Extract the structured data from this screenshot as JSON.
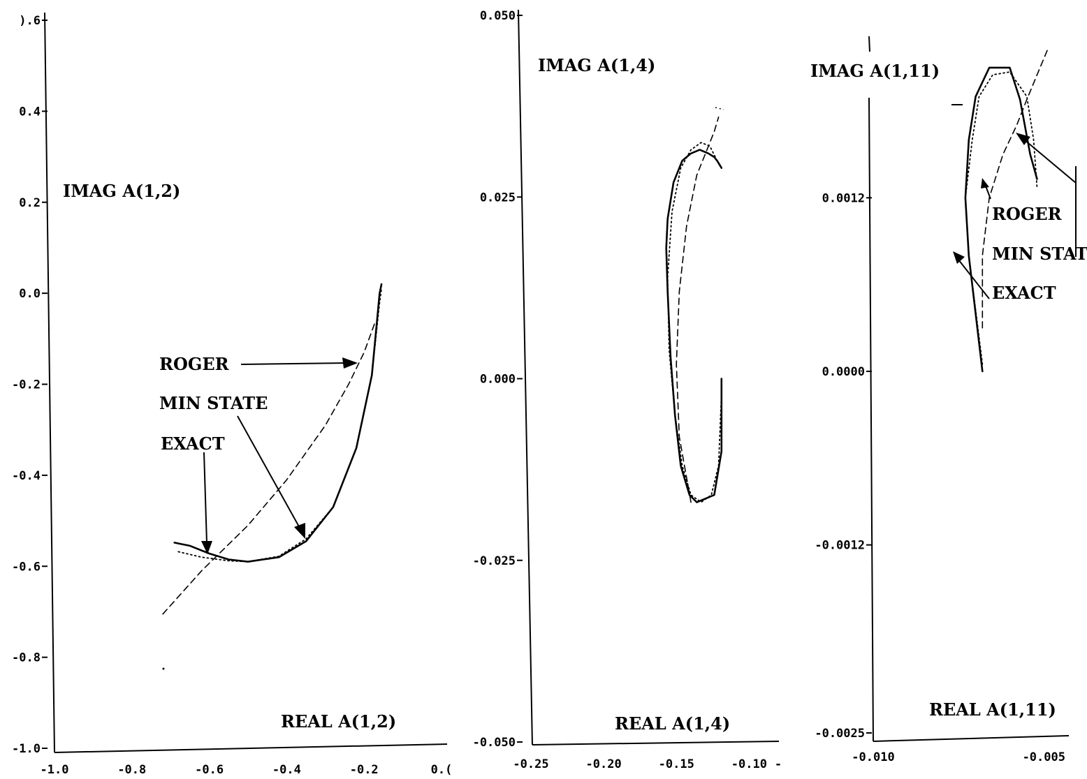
{
  "chart_data": [
    {
      "type": "line",
      "xlabel": "REAL A(1,2)",
      "ylabel": "IMAG A(1,2)",
      "xlim": [
        -1.0,
        0.0
      ],
      "ylim": [
        -1.0,
        0.6
      ],
      "xticks": [
        -1.0,
        -0.8,
        -0.6,
        -0.4,
        -0.2,
        0.0
      ],
      "xtick_labels": [
        "-1.0",
        "-0.8",
        "-0.6",
        "-0.4",
        "-0.2",
        "0.("
      ],
      "yticks": [
        0.6,
        0.4,
        0.2,
        0.0,
        -0.2,
        -0.4,
        -0.6,
        -0.8,
        -1.0
      ],
      "ytick_labels": [
        ").6",
        "0.4",
        "0.2",
        "0.0",
        "-0.2",
        "-0.4",
        "-0.6",
        "-0.8",
        "-1.0"
      ],
      "series": [
        {
          "name": "EXACT",
          "style": "solid",
          "x": [
            -0.69,
            -0.65,
            -0.6,
            -0.55,
            -0.5,
            -0.42,
            -0.35,
            -0.28,
            -0.22,
            -0.18,
            -0.16,
            -0.155
          ],
          "y": [
            -0.548,
            -0.555,
            -0.572,
            -0.585,
            -0.59,
            -0.58,
            -0.545,
            -0.47,
            -0.34,
            -0.18,
            0.0,
            0.02
          ]
        },
        {
          "name": "MIN STATE",
          "style": "dotted",
          "x": [
            -0.68,
            -0.62,
            -0.55,
            -0.5,
            -0.42,
            -0.35,
            -0.28,
            -0.22,
            -0.18,
            -0.16,
            -0.155
          ],
          "y": [
            -0.568,
            -0.58,
            -0.588,
            -0.59,
            -0.578,
            -0.54,
            -0.47,
            -0.34,
            -0.18,
            -0.02,
            0.01
          ]
        },
        {
          "name": "ROGER",
          "style": "dashed",
          "x": [
            -0.72,
            -0.62,
            -0.5,
            -0.4,
            -0.3,
            -0.24,
            -0.2,
            -0.17
          ],
          "y": [
            -0.705,
            -0.61,
            -0.51,
            -0.41,
            -0.29,
            -0.2,
            -0.13,
            -0.06
          ]
        }
      ],
      "annotations": [
        "ROGER",
        "MIN STATE",
        "EXACT"
      ]
    },
    {
      "type": "line",
      "xlabel": "REAL A(1,4)",
      "ylabel": "IMAG A(1,4)",
      "xlim": [
        -0.25,
        -0.08
      ],
      "ylim": [
        -0.05,
        0.05
      ],
      "xticks": [
        -0.25,
        -0.2,
        -0.15,
        -0.1,
        -0.08
      ],
      "xtick_labels": [
        "-0.25",
        "-0.20",
        "-0.15",
        "-0.10",
        "-"
      ],
      "yticks": [
        0.05,
        0.025,
        0.0,
        -0.025,
        -0.05
      ],
      "ytick_labels": [
        "0.050",
        "0.025",
        "0.000",
        "-0.025",
        "-0.050"
      ],
      "series": [
        {
          "name": "EXACT",
          "style": "solid",
          "x": [
            -0.119,
            -0.119,
            -0.124,
            -0.13,
            -0.136,
            -0.141,
            -0.147,
            -0.151,
            -0.154,
            -0.156,
            -0.157,
            -0.156,
            -0.152,
            -0.146,
            -0.14,
            -0.134,
            -0.128,
            -0.124,
            -0.122,
            -0.119
          ],
          "y": [
            0.0,
            -0.01,
            -0.016,
            -0.0165,
            -0.017,
            -0.016,
            -0.012,
            -0.005,
            0.003,
            0.012,
            0.018,
            0.022,
            0.027,
            0.03,
            0.031,
            0.0315,
            0.031,
            0.0305,
            0.03,
            0.029
          ]
        },
        {
          "name": "MIN STATE",
          "style": "dotted",
          "x": [
            -0.119,
            -0.121,
            -0.126,
            -0.133,
            -0.14,
            -0.146,
            -0.151,
            -0.155,
            -0.156,
            -0.153,
            -0.147,
            -0.14,
            -0.133,
            -0.127,
            -0.122
          ],
          "y": [
            -0.002,
            -0.012,
            -0.016,
            -0.017,
            -0.016,
            -0.012,
            -0.005,
            0.004,
            0.014,
            0.023,
            0.029,
            0.0315,
            0.0325,
            0.032,
            0.03
          ]
        },
        {
          "name": "ROGER",
          "style": "dashed",
          "x": [
            -0.14,
            -0.148,
            -0.15,
            -0.148,
            -0.143,
            -0.136,
            -0.129,
            -0.124,
            -0.121
          ],
          "y": [
            -0.017,
            -0.008,
            0.002,
            0.012,
            0.021,
            0.028,
            0.0315,
            0.034,
            0.036
          ]
        }
      ]
    },
    {
      "type": "line",
      "xlabel": "REAL A(1,11)",
      "ylabel": "IMAG A(1,11)",
      "xlim": [
        -0.01,
        -0.003
      ],
      "ylim": [
        -0.0025,
        0.0025
      ],
      "xticks": [
        -0.01,
        -0.005
      ],
      "xtick_labels": [
        "-0.010",
        "-0.005"
      ],
      "yticks": [
        0.0012,
        0.0,
        -0.0012,
        -0.0025
      ],
      "ytick_labels": [
        "0.0012",
        "0.0000",
        "-0.0012",
        "-0.0025"
      ],
      "series": [
        {
          "name": "EXACT",
          "style": "solid",
          "x": [
            -0.0068,
            -0.0072,
            -0.0073,
            -0.0072,
            -0.007,
            -0.0066,
            -0.006,
            -0.0057,
            -0.0054,
            -0.0052
          ],
          "y": [
            0.0,
            0.0008,
            0.0012,
            0.0016,
            0.0019,
            0.0021,
            0.0021,
            0.00188,
            0.0015,
            0.00133
          ]
        },
        {
          "name": "MIN STATE",
          "style": "dotted",
          "x": [
            -0.0068,
            -0.0072,
            -0.0073,
            -0.0071,
            -0.0069,
            -0.0065,
            -0.006,
            -0.0055,
            -0.0053,
            -0.0052
          ],
          "y": [
            5e-05,
            0.0008,
            0.0012,
            0.0016,
            0.0019,
            0.00205,
            0.00207,
            0.0019,
            0.0016,
            0.00127
          ]
        },
        {
          "name": "ROGER",
          "style": "dashed",
          "x": [
            -0.0068,
            -0.0068,
            -0.0066,
            -0.0062,
            -0.0058,
            -0.0055,
            -0.0052,
            -0.0049
          ],
          "y": [
            0.0003,
            0.0008,
            0.0012,
            0.0015,
            0.0017,
            0.00188,
            0.00205,
            0.00222
          ]
        }
      ],
      "annotations": [
        "ROGER",
        "MIN STAT",
        "EXACT"
      ]
    }
  ]
}
